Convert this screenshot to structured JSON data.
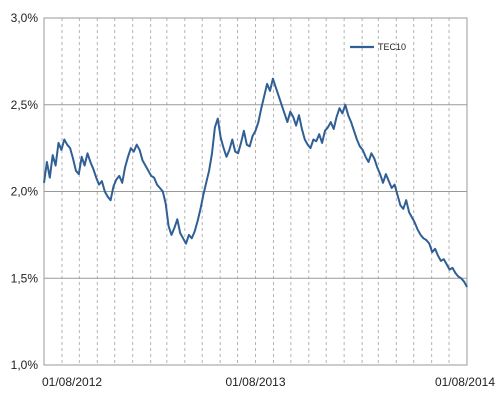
{
  "chart_data": {
    "type": "line",
    "title": "",
    "xlabel": "",
    "ylabel": "",
    "xlim": [
      "2012-08-01",
      "2014-08-01"
    ],
    "ylim": [
      1.0,
      3.0
    ],
    "y_ticks": [
      "1,0%",
      "1,5%",
      "2,0%",
      "2,5%",
      "3,0%"
    ],
    "y_tick_values": [
      1.0,
      1.5,
      2.0,
      2.5,
      3.0
    ],
    "x_ticks": [
      "01/08/2012",
      "01/08/2013",
      "01/08/2014"
    ],
    "x_tick_values": [
      "2012-08-01",
      "2013-08-01",
      "2014-08-01"
    ],
    "grid": {
      "horizontal": "solid",
      "vertical": "dashed",
      "vertical_interval": "monthly"
    },
    "legend_position": "top-right",
    "series": [
      {
        "name": "TEC10",
        "color": "#2f5f95",
        "points": [
          [
            "2012-08-01",
            2.05
          ],
          [
            "2012-08-06",
            2.17
          ],
          [
            "2012-08-11",
            2.08
          ],
          [
            "2012-08-16",
            2.21
          ],
          [
            "2012-08-21",
            2.15
          ],
          [
            "2012-08-26",
            2.28
          ],
          [
            "2012-08-31",
            2.24
          ],
          [
            "2012-09-05",
            2.3
          ],
          [
            "2012-09-10",
            2.27
          ],
          [
            "2012-09-15",
            2.25
          ],
          [
            "2012-09-20",
            2.19
          ],
          [
            "2012-09-25",
            2.12
          ],
          [
            "2012-09-30",
            2.1
          ],
          [
            "2012-10-05",
            2.2
          ],
          [
            "2012-10-10",
            2.15
          ],
          [
            "2012-10-15",
            2.22
          ],
          [
            "2012-10-20",
            2.17
          ],
          [
            "2012-10-25",
            2.13
          ],
          [
            "2012-10-30",
            2.08
          ],
          [
            "2012-11-04",
            2.04
          ],
          [
            "2012-11-09",
            2.06
          ],
          [
            "2012-11-14",
            2.0
          ],
          [
            "2012-11-19",
            1.97
          ],
          [
            "2012-11-24",
            1.95
          ],
          [
            "2012-11-29",
            2.03
          ],
          [
            "2012-12-04",
            2.07
          ],
          [
            "2012-12-09",
            2.09
          ],
          [
            "2012-12-14",
            2.05
          ],
          [
            "2012-12-19",
            2.14
          ],
          [
            "2012-12-24",
            2.2
          ],
          [
            "2012-12-29",
            2.25
          ],
          [
            "2013-01-03",
            2.23
          ],
          [
            "2013-01-08",
            2.27
          ],
          [
            "2013-01-13",
            2.24
          ],
          [
            "2013-01-18",
            2.18
          ],
          [
            "2013-01-23",
            2.15
          ],
          [
            "2013-01-28",
            2.12
          ],
          [
            "2013-02-02",
            2.09
          ],
          [
            "2013-02-07",
            2.08
          ],
          [
            "2013-02-12",
            2.04
          ],
          [
            "2013-02-17",
            2.02
          ],
          [
            "2013-02-22",
            2.0
          ],
          [
            "2013-02-27",
            1.93
          ],
          [
            "2013-03-04",
            1.8
          ],
          [
            "2013-03-09",
            1.75
          ],
          [
            "2013-03-14",
            1.79
          ],
          [
            "2013-03-19",
            1.84
          ],
          [
            "2013-03-24",
            1.76
          ],
          [
            "2013-03-29",
            1.73
          ],
          [
            "2013-04-03",
            1.7
          ],
          [
            "2013-04-08",
            1.75
          ],
          [
            "2013-04-13",
            1.73
          ],
          [
            "2013-04-18",
            1.77
          ],
          [
            "2013-04-23",
            1.83
          ],
          [
            "2013-04-28",
            1.9
          ],
          [
            "2013-05-03",
            1.98
          ],
          [
            "2013-05-08",
            2.05
          ],
          [
            "2013-05-13",
            2.12
          ],
          [
            "2013-05-18",
            2.22
          ],
          [
            "2013-05-23",
            2.37
          ],
          [
            "2013-05-28",
            2.42
          ],
          [
            "2013-06-02",
            2.31
          ],
          [
            "2013-06-07",
            2.25
          ],
          [
            "2013-06-12",
            2.2
          ],
          [
            "2013-06-17",
            2.24
          ],
          [
            "2013-06-22",
            2.3
          ],
          [
            "2013-06-27",
            2.23
          ],
          [
            "2013-07-02",
            2.22
          ],
          [
            "2013-07-07",
            2.28
          ],
          [
            "2013-07-12",
            2.35
          ],
          [
            "2013-07-17",
            2.27
          ],
          [
            "2013-07-22",
            2.26
          ],
          [
            "2013-07-27",
            2.32
          ],
          [
            "2013-08-01",
            2.35
          ],
          [
            "2013-08-06",
            2.4
          ],
          [
            "2013-08-11",
            2.48
          ],
          [
            "2013-08-16",
            2.55
          ],
          [
            "2013-08-21",
            2.62
          ],
          [
            "2013-08-26",
            2.58
          ],
          [
            "2013-08-31",
            2.65
          ],
          [
            "2013-09-05",
            2.6
          ],
          [
            "2013-09-10",
            2.55
          ],
          [
            "2013-09-15",
            2.5
          ],
          [
            "2013-09-20",
            2.45
          ],
          [
            "2013-09-25",
            2.4
          ],
          [
            "2013-09-30",
            2.46
          ],
          [
            "2013-10-05",
            2.43
          ],
          [
            "2013-10-10",
            2.38
          ],
          [
            "2013-10-15",
            2.44
          ],
          [
            "2013-10-20",
            2.36
          ],
          [
            "2013-10-25",
            2.3
          ],
          [
            "2013-10-30",
            2.27
          ],
          [
            "2013-11-04",
            2.25
          ],
          [
            "2013-11-09",
            2.3
          ],
          [
            "2013-11-14",
            2.29
          ],
          [
            "2013-11-19",
            2.33
          ],
          [
            "2013-11-24",
            2.28
          ],
          [
            "2013-11-29",
            2.35
          ],
          [
            "2013-12-04",
            2.37
          ],
          [
            "2013-12-09",
            2.4
          ],
          [
            "2013-12-14",
            2.36
          ],
          [
            "2013-12-19",
            2.43
          ],
          [
            "2013-12-24",
            2.48
          ],
          [
            "2013-12-29",
            2.45
          ],
          [
            "2014-01-03",
            2.5
          ],
          [
            "2014-01-08",
            2.44
          ],
          [
            "2014-01-13",
            2.4
          ],
          [
            "2014-01-18",
            2.35
          ],
          [
            "2014-01-23",
            2.3
          ],
          [
            "2014-01-28",
            2.26
          ],
          [
            "2014-02-02",
            2.24
          ],
          [
            "2014-02-07",
            2.2
          ],
          [
            "2014-02-12",
            2.17
          ],
          [
            "2014-02-17",
            2.22
          ],
          [
            "2014-02-22",
            2.19
          ],
          [
            "2014-02-27",
            2.14
          ],
          [
            "2014-03-04",
            2.1
          ],
          [
            "2014-03-09",
            2.05
          ],
          [
            "2014-03-14",
            2.1
          ],
          [
            "2014-03-19",
            2.06
          ],
          [
            "2014-03-24",
            2.02
          ],
          [
            "2014-03-29",
            2.04
          ],
          [
            "2014-04-03",
            1.98
          ],
          [
            "2014-04-08",
            1.92
          ],
          [
            "2014-04-13",
            1.9
          ],
          [
            "2014-04-18",
            1.95
          ],
          [
            "2014-04-23",
            1.88
          ],
          [
            "2014-04-28",
            1.85
          ],
          [
            "2014-05-03",
            1.82
          ],
          [
            "2014-05-08",
            1.78
          ],
          [
            "2014-05-13",
            1.75
          ],
          [
            "2014-05-18",
            1.73
          ],
          [
            "2014-05-23",
            1.72
          ],
          [
            "2014-05-28",
            1.7
          ],
          [
            "2014-06-02",
            1.65
          ],
          [
            "2014-06-07",
            1.67
          ],
          [
            "2014-06-12",
            1.63
          ],
          [
            "2014-06-17",
            1.6
          ],
          [
            "2014-06-22",
            1.61
          ],
          [
            "2014-06-27",
            1.58
          ],
          [
            "2014-07-02",
            1.55
          ],
          [
            "2014-07-07",
            1.56
          ],
          [
            "2014-07-12",
            1.53
          ],
          [
            "2014-07-17",
            1.51
          ],
          [
            "2014-07-22",
            1.5
          ],
          [
            "2014-07-27",
            1.48
          ],
          [
            "2014-08-01",
            1.45
          ]
        ]
      }
    ]
  }
}
